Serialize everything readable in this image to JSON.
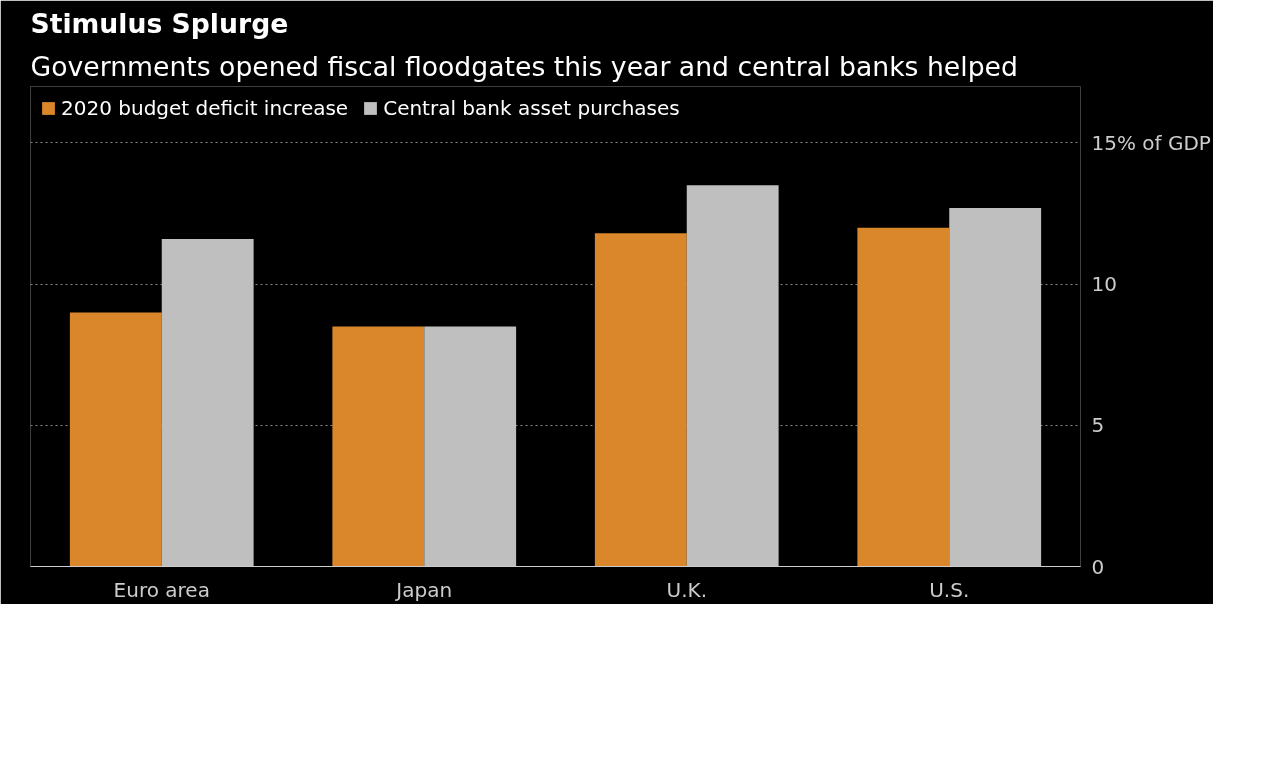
{
  "chart_data": {
    "type": "bar",
    "title": "Stimulus Splurge",
    "subtitle": "Governments opened fiscal floodgates this year and central banks helped",
    "categories": [
      "Euro area",
      "Japan",
      "U.K.",
      "U.S."
    ],
    "series": [
      {
        "name": "2020 budget deficit increase",
        "color": "#d9872a",
        "values": [
          9.0,
          8.5,
          11.8,
          12.0
        ]
      },
      {
        "name": "Central bank asset purchases",
        "color": "#bfbfbf",
        "values": [
          11.6,
          8.5,
          13.5,
          12.7
        ]
      }
    ],
    "ylim": [
      0,
      17
    ],
    "yticks": [
      0,
      5,
      10,
      {
        "value": 15,
        "label": "15% of GDP"
      }
    ],
    "grid": "y",
    "legend": "top left"
  }
}
